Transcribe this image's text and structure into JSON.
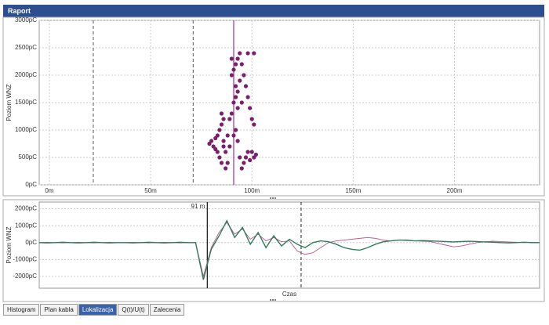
{
  "window_title": "Raport",
  "tabs": [
    "Histogram",
    "Plan kabla",
    "Lokalizacja",
    "Q(t)/U(t)",
    "Zalecenia"
  ],
  "active_tab": 2,
  "chart_data": [
    {
      "type": "scatter",
      "y_label": "Poziom WNZ",
      "grid": true,
      "xlim": [
        -5,
        242
      ],
      "ylim": [
        0,
        3000
      ],
      "xticks": [
        {
          "value": 0,
          "label": "0m"
        },
        {
          "value": 50,
          "label": "50m"
        },
        {
          "value": 100,
          "label": "100m"
        },
        {
          "value": 150,
          "label": "150m"
        },
        {
          "value": 200,
          "label": "200m"
        }
      ],
      "yticks": [
        {
          "value": 0,
          "label": "0pC"
        },
        {
          "value": 500,
          "label": "500pC"
        },
        {
          "value": 1000,
          "label": "1000pC"
        },
        {
          "value": 1500,
          "label": "1500pC"
        },
        {
          "value": 2000,
          "label": "2000pC"
        },
        {
          "value": 2500,
          "label": "2500pC"
        },
        {
          "value": 3000,
          "label": "3000pC"
        }
      ],
      "reference_lines": [
        {
          "x": 21.7,
          "style": "dashed",
          "color": "#555555"
        },
        {
          "x": 71,
          "style": "dashed",
          "color": "#555555"
        },
        {
          "x": 91,
          "style": "solid",
          "color": "#b0409a"
        }
      ],
      "series": [
        {
          "color": "#7a1f6e",
          "x": [
            80,
            81,
            82,
            79,
            83,
            84,
            85,
            86,
            87,
            84,
            85,
            86,
            88,
            89,
            90,
            91,
            92,
            93,
            90,
            91,
            92,
            93,
            94,
            95,
            96,
            97,
            98,
            99,
            100,
            101,
            100,
            101,
            102,
            99,
            98,
            97,
            96,
            95,
            94,
            93,
            92,
            91,
            89,
            88,
            87,
            86,
            85,
            94,
            93,
            95,
            98,
            101,
            90,
            92,
            83,
            82
          ],
          "values": [
            800,
            700,
            650,
            750,
            900,
            1000,
            1100,
            800,
            600,
            500,
            400,
            700,
            900,
            1200,
            1300,
            1500,
            1600,
            1700,
            2000,
            2100,
            2200,
            2300,
            2400,
            2200,
            2000,
            1800,
            1600,
            1400,
            1200,
            1100,
            600,
            500,
            550,
            450,
            600,
            500,
            400,
            300,
            500,
            800,
            1000,
            900,
            700,
            400,
            300,
            1200,
            1300,
            1900,
            1400,
            1500,
            2400,
            2400,
            2300,
            1800,
            600,
            850
          ]
        }
      ]
    },
    {
      "type": "line",
      "y_label": "Poziom WNZ",
      "x_label": "Czas",
      "grid": true,
      "ylim": [
        -2700,
        2400
      ],
      "yticks": [
        {
          "value": 2000,
          "label": "2000pC"
        },
        {
          "value": 1000,
          "label": "1000pC"
        },
        {
          "value": 0,
          "label": "0pC"
        },
        {
          "value": -1000,
          "label": "-1000pC"
        },
        {
          "value": -2000,
          "label": "-2000pC"
        }
      ],
      "reference_lines": [
        {
          "x": 21.5,
          "style": "solid",
          "color": "#222222",
          "label": "91 m"
        },
        {
          "x": 33.5,
          "style": "dashed",
          "color": "#222222"
        }
      ],
      "series": [
        {
          "color": "#c0508a",
          "values": [
            0,
            20,
            0,
            -20,
            0,
            20,
            0,
            -20,
            0,
            20,
            0,
            0,
            20,
            0,
            -20,
            0,
            20,
            0,
            -20,
            0,
            0,
            -2000,
            -300,
            600,
            1200,
            500,
            800,
            200,
            500,
            100,
            300,
            50,
            100,
            -500,
            -700,
            -600,
            -300,
            0,
            100,
            150,
            200,
            250,
            300,
            250,
            150,
            100,
            150,
            120,
            100,
            80,
            60,
            -50,
            -150,
            -250,
            -200,
            -100,
            0,
            50,
            80,
            60,
            40,
            20,
            0,
            20,
            0
          ]
        },
        {
          "color": "#2e7d5a",
          "values": [
            0,
            -20,
            0,
            20,
            0,
            -20,
            0,
            20,
            0,
            -20,
            0,
            0,
            -20,
            0,
            20,
            0,
            -20,
            0,
            20,
            0,
            0,
            -2200,
            -400,
            400,
            1300,
            300,
            900,
            -100,
            600,
            -300,
            400,
            -200,
            200,
            -100,
            -300,
            0,
            100,
            50,
            -100,
            -300,
            -400,
            -450,
            -300,
            -100,
            50,
            100,
            150,
            150,
            100,
            120,
            100,
            80,
            60,
            40,
            60,
            80,
            60,
            40,
            20,
            0,
            -20,
            0,
            20,
            0,
            0
          ]
        }
      ]
    }
  ]
}
